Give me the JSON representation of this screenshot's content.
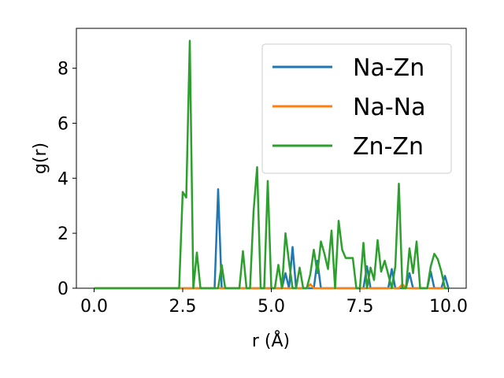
{
  "chart_data": {
    "type": "line",
    "xlabel": "r (Å)",
    "ylabel": "g(r)",
    "xlim": [
      -0.5,
      10.5
    ],
    "ylim": [
      0,
      9.45
    ],
    "xticks": [
      0.0,
      2.5,
      5.0,
      7.5,
      10.0
    ],
    "xtick_labels": [
      "0.0",
      "2.5",
      "5.0",
      "7.5",
      "10.0"
    ],
    "yticks": [
      0,
      2,
      4,
      6,
      8
    ],
    "ytick_labels": [
      "0",
      "2",
      "4",
      "6",
      "8"
    ],
    "grid": false,
    "legend_position": "top-right",
    "series": [
      {
        "name": "Na-Zn",
        "color": "#1f77b4",
        "points": [
          [
            0.0,
            0
          ],
          [
            3.4,
            0
          ],
          [
            3.5,
            3.6
          ],
          [
            3.6,
            0
          ],
          [
            5.3,
            0
          ],
          [
            5.4,
            0.55
          ],
          [
            5.5,
            0
          ],
          [
            5.6,
            1.5
          ],
          [
            5.7,
            0
          ],
          [
            6.2,
            0
          ],
          [
            6.3,
            1.0
          ],
          [
            6.4,
            0
          ],
          [
            7.6,
            0
          ],
          [
            7.7,
            0.8
          ],
          [
            7.8,
            0
          ],
          [
            8.3,
            0
          ],
          [
            8.4,
            0.7
          ],
          [
            8.5,
            0
          ],
          [
            8.8,
            0
          ],
          [
            8.9,
            0.55
          ],
          [
            9.0,
            0
          ],
          [
            9.4,
            0
          ],
          [
            9.5,
            0.6
          ],
          [
            9.6,
            0
          ],
          [
            9.8,
            0
          ],
          [
            9.9,
            0.45
          ],
          [
            10.0,
            0
          ]
        ]
      },
      {
        "name": "Na-Na",
        "color": "#ff7f0e",
        "points": [
          [
            0.0,
            0
          ],
          [
            6.0,
            0
          ],
          [
            6.1,
            0.15
          ],
          [
            6.2,
            0
          ],
          [
            8.6,
            0
          ],
          [
            8.7,
            0.15
          ],
          [
            8.8,
            0
          ],
          [
            10.0,
            0
          ]
        ]
      },
      {
        "name": "Zn-Zn",
        "color": "#2ca02c",
        "points": [
          [
            0.0,
            0
          ],
          [
            2.4,
            0
          ],
          [
            2.5,
            3.5
          ],
          [
            2.6,
            3.3
          ],
          [
            2.7,
            9.0
          ],
          [
            2.8,
            0
          ],
          [
            2.9,
            1.3
          ],
          [
            3.0,
            0
          ],
          [
            3.5,
            0
          ],
          [
            3.6,
            0.85
          ],
          [
            3.7,
            0
          ],
          [
            4.1,
            0
          ],
          [
            4.2,
            1.35
          ],
          [
            4.3,
            0
          ],
          [
            4.4,
            0
          ],
          [
            4.5,
            2.8
          ],
          [
            4.6,
            4.4
          ],
          [
            4.7,
            0
          ],
          [
            4.8,
            0
          ],
          [
            4.9,
            3.9
          ],
          [
            5.0,
            0
          ],
          [
            5.1,
            0
          ],
          [
            5.2,
            0.85
          ],
          [
            5.3,
            0
          ],
          [
            5.4,
            2.0
          ],
          [
            5.5,
            0.95
          ],
          [
            5.6,
            0
          ],
          [
            5.7,
            0
          ],
          [
            5.8,
            0.75
          ],
          [
            5.9,
            0
          ],
          [
            6.0,
            0
          ],
          [
            6.1,
            0.5
          ],
          [
            6.2,
            1.4
          ],
          [
            6.3,
            0.55
          ],
          [
            6.4,
            1.7
          ],
          [
            6.5,
            1.25
          ],
          [
            6.6,
            0.7
          ],
          [
            6.7,
            2.1
          ],
          [
            6.8,
            0
          ],
          [
            6.9,
            2.45
          ],
          [
            7.0,
            1.4
          ],
          [
            7.1,
            1.1
          ],
          [
            7.2,
            1.1
          ],
          [
            7.3,
            1.1
          ],
          [
            7.4,
            0
          ],
          [
            7.5,
            0
          ],
          [
            7.6,
            1.65
          ],
          [
            7.7,
            0
          ],
          [
            7.8,
            0.75
          ],
          [
            7.9,
            0.3
          ],
          [
            8.0,
            1.75
          ],
          [
            8.1,
            0.6
          ],
          [
            8.2,
            1.0
          ],
          [
            8.3,
            0.5
          ],
          [
            8.4,
            0
          ],
          [
            8.5,
            0.8
          ],
          [
            8.6,
            3.8
          ],
          [
            8.7,
            0
          ],
          [
            8.8,
            0
          ],
          [
            8.9,
            1.45
          ],
          [
            9.0,
            0.55
          ],
          [
            9.1,
            1.7
          ],
          [
            9.2,
            0
          ],
          [
            9.3,
            0
          ],
          [
            9.4,
            0
          ],
          [
            9.5,
            0.8
          ],
          [
            9.6,
            1.25
          ],
          [
            9.7,
            1.05
          ],
          [
            9.8,
            0.6
          ],
          [
            9.9,
            0
          ],
          [
            10.0,
            0
          ]
        ]
      }
    ]
  }
}
